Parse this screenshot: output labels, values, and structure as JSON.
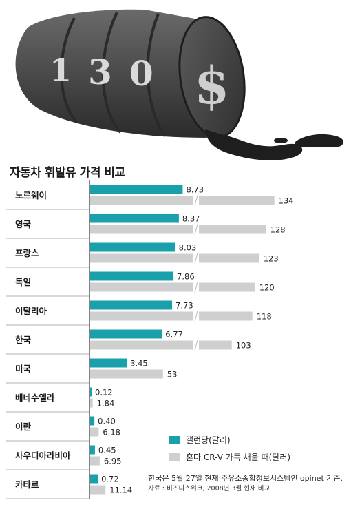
{
  "hero": {
    "barrel_digits": [
      "1",
      "3",
      "0"
    ],
    "barrel_symbol": "$",
    "colors": {
      "barrel": "#4a4a4a",
      "barrel_dark": "#2a2a2a",
      "digits": "#d8d8d8",
      "oil": "#1e1e1e"
    }
  },
  "chart_data": {
    "type": "bar",
    "title": "자동차 휘발유 가격 비교",
    "categories": [
      "노르웨이",
      "영국",
      "프랑스",
      "독일",
      "이탈리아",
      "한국",
      "미국",
      "베네수엘라",
      "이란",
      "사우디아라비아",
      "카타르"
    ],
    "series": [
      {
        "name": "갤런당(달러)",
        "color": "#1aa0aa",
        "values": [
          8.73,
          8.37,
          8.03,
          7.86,
          7.73,
          6.77,
          3.45,
          0.12,
          0.4,
          0.45,
          0.72
        ],
        "labels": [
          "8.73",
          "8.37",
          "8.03",
          "7.86",
          "7.73",
          "6.77",
          "3.45",
          "0.12",
          "0.40",
          "0.45",
          "0.72"
        ]
      },
      {
        "name": "혼다 CR-V 가득 채울 때(달러)",
        "color": "#cfcfcf",
        "values": [
          134,
          128,
          123,
          120,
          118,
          103,
          53,
          1.84,
          6.18,
          6.95,
          11.14
        ],
        "labels": [
          "134",
          "128",
          "123",
          "120",
          "118",
          "103",
          "53",
          "1.84",
          "6.18",
          "6.95",
          "11.14"
        ]
      }
    ],
    "grid": false,
    "legend_position": "bottom-right",
    "axis_break": true
  },
  "notes": {
    "source_line1": "한국은 5월 27일 현재 주유소종합정보시스템인 opinet 기준.",
    "source_line2": "자료 : 비즈니스위크, 2008년 3월 현재 비교"
  }
}
